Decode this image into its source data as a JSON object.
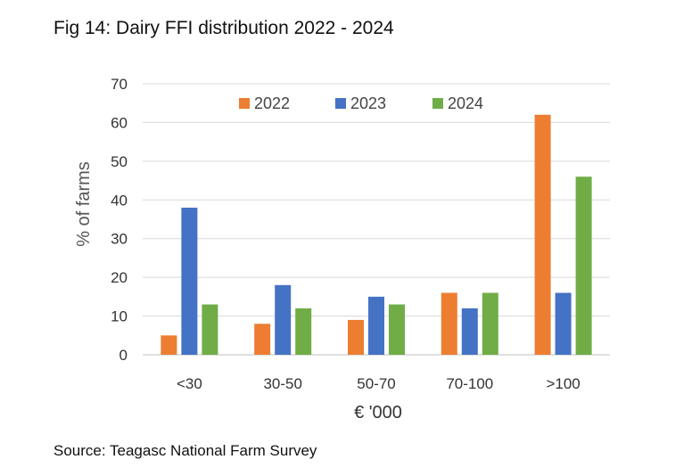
{
  "figure": {
    "title": "Fig 14: Dairy FFI distribution 2022 - 2024",
    "source": "Source: Teagasc National Farm Survey"
  },
  "chart_data": {
    "type": "bar",
    "title": "Fig 14: Dairy FFI distribution 2022 - 2024",
    "xlabel": "€ '000",
    "ylabel": "% of farms",
    "categories": [
      "<30",
      "30-50",
      "50-70",
      "70-100",
      ">100"
    ],
    "series": [
      {
        "name": "2022",
        "color": "#ed7d31",
        "values": [
          5,
          8,
          9,
          16,
          62
        ]
      },
      {
        "name": "2023",
        "color": "#4472c4",
        "values": [
          38,
          18,
          15,
          12,
          16
        ]
      },
      {
        "name": "2024",
        "color": "#70ad47",
        "values": [
          13,
          12,
          13,
          16,
          46
        ]
      }
    ],
    "ylim": [
      0,
      70
    ],
    "yticks": [
      0,
      10,
      20,
      30,
      40,
      50,
      60,
      70
    ],
    "grid": true,
    "legend_position": "top-right"
  }
}
